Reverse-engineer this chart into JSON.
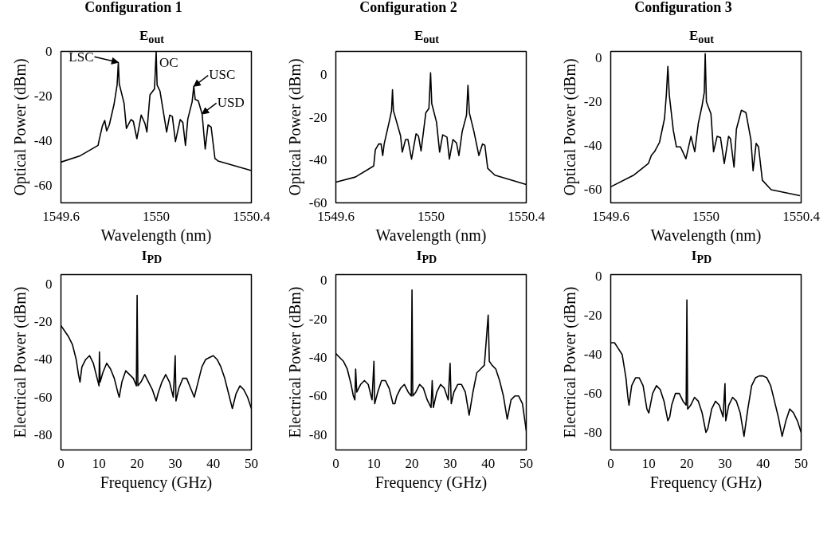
{
  "chart_data": [
    {
      "type": "line",
      "title": "Configuration 1",
      "subtitle": "E$_{out}$",
      "xlabel": "Wavelength (nm)",
      "ylabel": "Optical Power (dBm)",
      "xlim": [
        1549.6,
        1550.4
      ],
      "ylim": [
        -68,
        0
      ],
      "xticks": [
        1549.6,
        1550,
        1550.4
      ],
      "yticks": [
        0,
        -20,
        -40,
        -60
      ],
      "x": [
        1549.6,
        1549.678,
        1549.756,
        1549.761,
        1549.774,
        1549.784,
        1549.792,
        1549.803,
        1549.823,
        1549.836,
        1549.841,
        1549.845,
        1549.865,
        1549.875,
        1549.894,
        1549.904,
        1549.919,
        1549.937,
        1549.953,
        1549.961,
        1549.974,
        1549.993,
        1550.0,
        1550.004,
        1550.016,
        1550.031,
        1550.044,
        1550.057,
        1550.068,
        1550.081,
        1550.101,
        1550.112,
        1550.123,
        1550.133,
        1550.151,
        1550.158,
        1550.164,
        1550.177,
        1550.193,
        1550.206,
        1550.218,
        1550.231,
        1550.247,
        1550.26,
        1550.4
      ],
      "series": [
        {
          "color": "#000000",
          "values": [
            -49.7,
            -47,
            -42.2,
            -39.5,
            -33.5,
            -31,
            -35.7,
            -33,
            -23.8,
            -15,
            -4.9,
            -14.6,
            -23.2,
            -34.6,
            -30.6,
            -31.4,
            -39.2,
            -28.6,
            -32.4,
            -36.2,
            -19.5,
            -16.8,
            0,
            -15.1,
            -17.8,
            -27.6,
            -36.2,
            -28.6,
            -29.2,
            -40.5,
            -30.6,
            -31.9,
            -42.2,
            -30.3,
            -22.7,
            -15.7,
            -21.6,
            -22.2,
            -28.1,
            -43.8,
            -33,
            -34,
            -48.1,
            -49.2,
            -53.5
          ]
        }
      ],
      "annotations": [
        {
          "text": "LSC",
          "x": 1549.841,
          "y": -4.9
        },
        {
          "text": "OC",
          "x": 1550.0,
          "y": 0
        },
        {
          "text": "USC",
          "x": 1550.158,
          "y": -15.7
        },
        {
          "text": "USD",
          "x": 1550.193,
          "y": -28.1
        }
      ]
    },
    {
      "type": "line",
      "title": "Configuration 2",
      "subtitle": "E$_{out}$",
      "xlabel": "Wavelength (nm)",
      "ylabel": "Optical Power (dBm)",
      "xlim": [
        1549.6,
        1550.4
      ],
      "ylim": [
        -60,
        11
      ],
      "xticks": [
        1549.6,
        1550,
        1550.4
      ],
      "yticks": [
        0,
        -20,
        -40,
        -60
      ],
      "x": [
        1549.6,
        1549.682,
        1549.759,
        1549.766,
        1549.78,
        1549.79,
        1549.797,
        1549.803,
        1549.826,
        1549.834,
        1549.838,
        1549.842,
        1549.872,
        1549.879,
        1549.893,
        1549.903,
        1549.918,
        1549.937,
        1549.947,
        1549.958,
        1549.978,
        1549.991,
        1549.998,
        1550.003,
        1550.023,
        1550.036,
        1550.049,
        1550.067,
        1550.077,
        1550.092,
        1550.107,
        1550.117,
        1550.131,
        1550.149,
        1550.155,
        1550.161,
        1550.18,
        1550.201,
        1550.216,
        1550.226,
        1550.238,
        1550.268,
        1550.4
      ],
      "series": [
        {
          "color": "#000000",
          "values": [
            -50.3,
            -47.9,
            -42.7,
            -35.1,
            -32.4,
            -32.4,
            -37.8,
            -32.4,
            -21.1,
            -16.8,
            -7,
            -16.8,
            -28.6,
            -36.2,
            -30.3,
            -30.3,
            -39.5,
            -27.6,
            -28.6,
            -35.7,
            -17.8,
            -15.7,
            1,
            -13.5,
            -22.2,
            -36.2,
            -28.1,
            -29.2,
            -39.5,
            -30.3,
            -31.9,
            -37.8,
            -26.5,
            -18.9,
            -4.9,
            -17.8,
            -26.5,
            -37.8,
            -32.4,
            -33,
            -43.8,
            -47,
            -51.4
          ]
        }
      ]
    },
    {
      "type": "line",
      "title": "Configuration 3",
      "subtitle": "E$_{out}$",
      "xlabel": "Wavelength (nm)",
      "ylabel": "Optical Power (dBm)",
      "xlim": [
        1549.6,
        1550.4
      ],
      "ylim": [
        -66,
        3
      ],
      "xticks": [
        1549.6,
        1550,
        1550.4
      ],
      "yticks": [
        0,
        -20,
        -40,
        -60
      ],
      "x": [
        1549.6,
        1549.695,
        1549.758,
        1549.771,
        1549.784,
        1549.805,
        1549.826,
        1549.834,
        1549.84,
        1549.846,
        1549.863,
        1549.876,
        1549.893,
        1549.916,
        1549.937,
        1549.953,
        1549.968,
        1549.984,
        1549.993,
        1549.997,
        1550.002,
        1550.021,
        1550.032,
        1550.047,
        1550.061,
        1550.077,
        1550.095,
        1550.103,
        1550.118,
        1550.128,
        1550.149,
        1550.168,
        1550.189,
        1550.198,
        1550.211,
        1550.221,
        1550.237,
        1550.274,
        1550.395
      ],
      "series": [
        {
          "color": "#000000",
          "values": [
            -58.7,
            -53.5,
            -48.1,
            -44.3,
            -42.7,
            -38.4,
            -27.6,
            -16.2,
            -3.8,
            -16.8,
            -33,
            -40.5,
            -40.5,
            -45.9,
            -35.7,
            -42.7,
            -29.7,
            -21.6,
            -15.7,
            2,
            -20,
            -25.4,
            -42.7,
            -35.7,
            -36.2,
            -48.1,
            -35.7,
            -36.8,
            -49.7,
            -32.4,
            -23.8,
            -24.9,
            -37.3,
            -51.4,
            -38.9,
            -40.5,
            -55.7,
            -60,
            -62.7
          ]
        }
      ]
    },
    {
      "type": "line",
      "title": "I$_{PD}$",
      "xlabel": "Frequency (GHz)",
      "ylabel": "Electrical Power (dBm)",
      "xlim": [
        0,
        50
      ],
      "ylim": [
        -88,
        5
      ],
      "xticks": [
        0,
        10,
        20,
        30,
        40,
        50
      ],
      "yticks": [
        0,
        -20,
        -40,
        -60,
        -80
      ],
      "x": [
        0,
        1,
        2,
        3,
        4,
        4.6,
        5,
        5.5,
        6.5,
        7.5,
        8.5,
        9.5,
        10,
        10.1,
        10.3,
        11,
        12,
        13,
        14,
        15,
        15.3,
        16,
        17,
        18,
        19,
        19.8,
        20,
        20.2,
        21,
        22,
        23,
        24,
        25,
        25.5,
        26.5,
        27.5,
        28.5,
        29.5,
        30,
        30.2,
        31,
        32,
        33,
        34,
        35,
        36,
        37,
        38,
        39,
        40,
        41,
        42,
        43,
        44,
        45,
        46,
        47,
        48,
        49,
        50
      ],
      "series": [
        {
          "color": "#000000",
          "values": [
            -22,
            -25,
            -28,
            -32,
            -40,
            -48,
            -52,
            -44,
            -40,
            -38,
            -42,
            -50,
            -54,
            -36,
            -52,
            -47,
            -42,
            -45,
            -50,
            -58,
            -60,
            -52,
            -46,
            -48,
            -50,
            -54,
            -6,
            -54,
            -52,
            -48,
            -52,
            -56,
            -62,
            -58,
            -52,
            -48,
            -52,
            -60,
            -38,
            -62,
            -55,
            -50,
            -50,
            -55,
            -60,
            -52,
            -44,
            -40,
            -39,
            -38,
            -40,
            -44,
            -50,
            -58,
            -66,
            -58,
            -54,
            -56,
            -60,
            -66
          ]
        }
      ]
    },
    {
      "type": "line",
      "title": "I$_{PD}$",
      "xlabel": "Frequency (GHz)",
      "ylabel": "Electrical Power (dBm)",
      "xlim": [
        0,
        50
      ],
      "ylim": [
        -88,
        3
      ],
      "xticks": [
        0,
        10,
        20,
        30,
        40,
        50
      ],
      "yticks": [
        0,
        -20,
        -40,
        -60,
        -80
      ],
      "x": [
        0,
        1,
        2,
        3,
        4,
        4.6,
        5,
        5.2,
        5.5,
        6.5,
        7.5,
        8.5,
        9.5,
        10,
        10.2,
        11,
        12,
        13,
        14,
        15,
        15.5,
        16,
        17,
        18,
        19,
        19.8,
        20,
        20.2,
        21,
        22,
        23,
        24,
        25,
        25.3,
        25.6,
        26.5,
        27.5,
        28.5,
        29.5,
        30,
        30.3,
        31,
        32,
        33,
        34,
        35,
        36,
        37,
        38,
        39,
        40,
        40.3,
        41,
        42,
        43,
        44,
        45,
        46,
        47,
        48,
        49,
        50
      ],
      "series": [
        {
          "color": "#000000",
          "values": [
            -38,
            -40,
            -42,
            -46,
            -54,
            -60,
            -62,
            -46,
            -58,
            -54,
            -52,
            -54,
            -62,
            -42,
            -64,
            -58,
            -52,
            -52,
            -56,
            -64,
            -64,
            -60,
            -56,
            -54,
            -58,
            -60,
            -5,
            -60,
            -58,
            -54,
            -56,
            -62,
            -66,
            -52,
            -66,
            -58,
            -54,
            -56,
            -62,
            -43,
            -64,
            -58,
            -54,
            -54,
            -58,
            -70,
            -58,
            -48,
            -46,
            -44,
            -18,
            -42,
            -44,
            -46,
            -52,
            -60,
            -72,
            -62,
            -60,
            -60,
            -64,
            -78
          ]
        }
      ]
    },
    {
      "type": "line",
      "title": "I$_{PD}$",
      "xlabel": "Frequency (GHz)",
      "ylabel": "Electrical Power (dBm)",
      "xlim": [
        0,
        50
      ],
      "ylim": [
        -89,
        1
      ],
      "xticks": [
        0,
        10,
        20,
        30,
        40,
        50
      ],
      "yticks": [
        0,
        -20,
        -40,
        -60,
        -80
      ],
      "x": [
        0,
        1,
        2,
        3,
        4,
        4.5,
        4.8,
        5.5,
        6.5,
        7.5,
        8.5,
        9.5,
        10,
        11,
        12,
        13,
        14,
        15,
        15.5,
        16,
        17,
        18,
        19,
        19.8,
        20,
        20.2,
        21,
        22,
        23,
        24,
        25,
        25.5,
        26.5,
        27.5,
        28.5,
        29.5,
        30,
        30.2,
        31,
        32,
        33,
        34,
        35,
        36,
        37,
        38,
        39,
        40,
        41,
        42,
        43,
        44,
        45,
        46,
        47,
        48,
        49,
        50
      ],
      "series": [
        {
          "color": "#000000",
          "values": [
            -34,
            -34,
            -37,
            -40,
            -52,
            -62,
            -66,
            -56,
            -52,
            -52,
            -56,
            -68,
            -70,
            -60,
            -56,
            -58,
            -64,
            -74,
            -72,
            -66,
            -60,
            -60,
            -64,
            -66,
            -12,
            -68,
            -66,
            -62,
            -64,
            -70,
            -80,
            -78,
            -68,
            -64,
            -66,
            -72,
            -55,
            -74,
            -66,
            -62,
            -64,
            -70,
            -82,
            -68,
            -56,
            -52,
            -51,
            -51,
            -52,
            -56,
            -64,
            -72,
            -82,
            -74,
            -68,
            -70,
            -74,
            -80
          ]
        }
      ]
    }
  ]
}
